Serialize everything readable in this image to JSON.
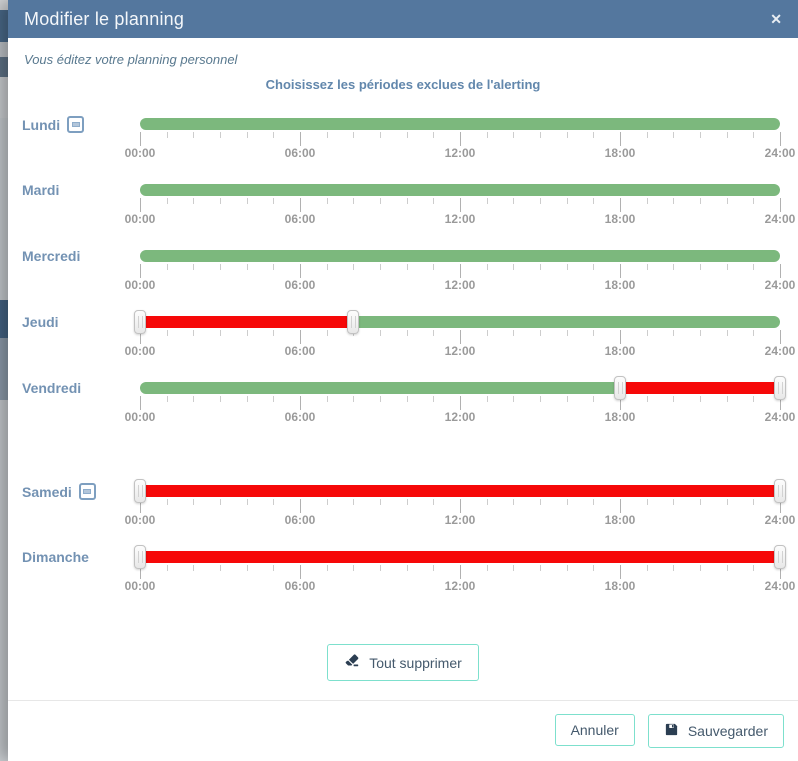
{
  "modal": {
    "title": "Modifier le planning",
    "close_icon": "✕",
    "subtitle": "Vous éditez votre planning personnel",
    "heading": "Choisissez les périodes exclues de l'alerting"
  },
  "schedule": {
    "axis": {
      "hours_start": 0,
      "hours_end": 24,
      "major_tick_step_hours": 6,
      "minor_tick_step_hours": 1,
      "tick_labels": [
        "00:00",
        "06:00",
        "12:00",
        "18:00",
        "24:00"
      ]
    },
    "days": [
      {
        "label": "Lundi",
        "removable": true,
        "extra_gap_before": false,
        "segments": [
          {
            "from": 0,
            "to": 24,
            "state": "active"
          }
        ],
        "handles": []
      },
      {
        "label": "Mardi",
        "removable": false,
        "extra_gap_before": false,
        "segments": [
          {
            "from": 0,
            "to": 24,
            "state": "active"
          }
        ],
        "handles": []
      },
      {
        "label": "Mercredi",
        "removable": false,
        "extra_gap_before": false,
        "segments": [
          {
            "from": 0,
            "to": 24,
            "state": "active"
          }
        ],
        "handles": []
      },
      {
        "label": "Jeudi",
        "removable": false,
        "extra_gap_before": false,
        "segments": [
          {
            "from": 0,
            "to": 8,
            "state": "excluded"
          },
          {
            "from": 8,
            "to": 24,
            "state": "active"
          }
        ],
        "handles": [
          0,
          8
        ]
      },
      {
        "label": "Vendredi",
        "removable": false,
        "extra_gap_before": false,
        "segments": [
          {
            "from": 0,
            "to": 18,
            "state": "active"
          },
          {
            "from": 18,
            "to": 24,
            "state": "excluded"
          }
        ],
        "handles": [
          18,
          24
        ]
      },
      {
        "label": "Samedi",
        "removable": true,
        "extra_gap_before": true,
        "segments": [
          {
            "from": 0,
            "to": 24,
            "state": "excluded"
          }
        ],
        "handles": [
          0,
          24
        ]
      },
      {
        "label": "Dimanche",
        "removable": false,
        "extra_gap_before": false,
        "segments": [
          {
            "from": 0,
            "to": 24,
            "state": "excluded"
          }
        ],
        "handles": [
          0,
          24
        ]
      }
    ]
  },
  "actions": {
    "clear_all_label": "Tout supprimer",
    "cancel_label": "Annuler",
    "save_label": "Sauvegarder"
  },
  "colors": {
    "header_bg": "#54779e",
    "day_label": "#7392b3",
    "active_period": "#7cb87d",
    "excluded_period": "#f60808",
    "accent_border": "#7de0cd",
    "button_text": "#44596c",
    "icon": "#2b3e52"
  }
}
